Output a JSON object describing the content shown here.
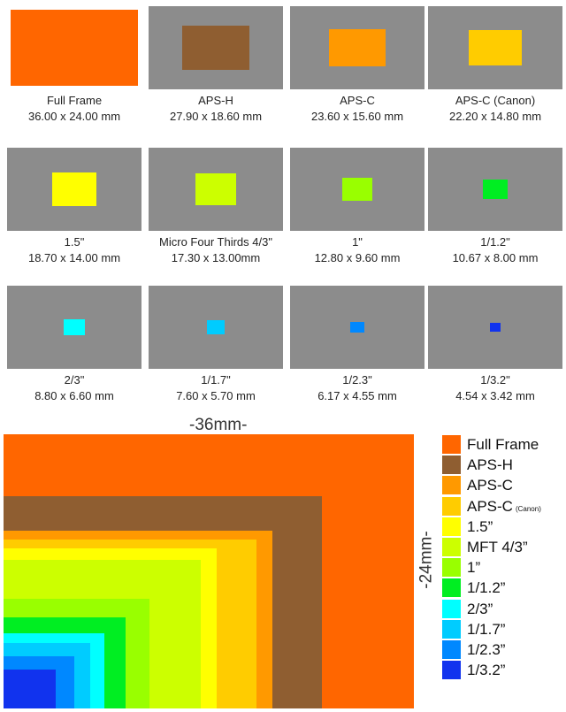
{
  "sensors": [
    {
      "name": "Full Frame",
      "dims": "36.00 x 24.00 mm",
      "w": 36.0,
      "h": 24.0,
      "color": "#ff6600"
    },
    {
      "name": "APS-H",
      "dims": "27.90 x 18.60 mm",
      "w": 27.9,
      "h": 18.6,
      "color": "#8f5e31"
    },
    {
      "name": "APS-C",
      "dims": "23.60 x 15.60 mm",
      "w": 23.6,
      "h": 15.6,
      "color": "#ff9900"
    },
    {
      "name": "APS-C (Canon)",
      "dims": "22.20 x 14.80 mm",
      "w": 22.2,
      "h": 14.8,
      "color": "#ffcc00"
    },
    {
      "name": "1.5\"",
      "dims": "18.70 x 14.00 mm",
      "w": 18.7,
      "h": 14.0,
      "color": "#ffff00"
    },
    {
      "name": "Micro Four Thirds 4/3\"",
      "dims": "17.30 x 13.00mm",
      "w": 17.3,
      "h": 13.0,
      "color": "#ccff00"
    },
    {
      "name": "1\"",
      "dims": "12.80 x 9.60 mm",
      "w": 12.8,
      "h": 9.6,
      "color": "#99ff00"
    },
    {
      "name": "1/1.2\"",
      "dims": "10.67 x 8.00 mm",
      "w": 10.67,
      "h": 8.0,
      "color": "#00ee22"
    },
    {
      "name": "2/3\"",
      "dims": "8.80 x 6.60 mm",
      "w": 8.8,
      "h": 6.6,
      "color": "#00ffff"
    },
    {
      "name": "1/1.7\"",
      "dims": "7.60 x 5.70 mm",
      "w": 7.6,
      "h": 5.7,
      "color": "#00ccff"
    },
    {
      "name": "1/2.3\"",
      "dims": "6.17 x 4.55 mm",
      "w": 6.17,
      "h": 4.55,
      "color": "#0088ff"
    },
    {
      "name": "1/3.2\"",
      "dims": "4.54 x 3.42 mm",
      "w": 4.54,
      "h": 3.42,
      "color": "#1133ee"
    }
  ],
  "comparison": {
    "width_label": "-36mm-",
    "height_label": "-24mm-"
  },
  "legend": [
    {
      "label": "Full Frame",
      "note": ""
    },
    {
      "label": "APS-H",
      "note": ""
    },
    {
      "label": "APS-C",
      "note": ""
    },
    {
      "label": "APS-C",
      "note": "(Canon)"
    },
    {
      "label": "1.5”",
      "note": ""
    },
    {
      "label": "MFT 4/3”",
      "note": ""
    },
    {
      "label": "1”",
      "note": ""
    },
    {
      "label": "1/1.2”",
      "note": ""
    },
    {
      "label": "2/3”",
      "note": ""
    },
    {
      "label": "1/1.7”",
      "note": ""
    },
    {
      "label": "1/2.3”",
      "note": ""
    },
    {
      "label": "1/3.2”",
      "note": ""
    }
  ]
}
